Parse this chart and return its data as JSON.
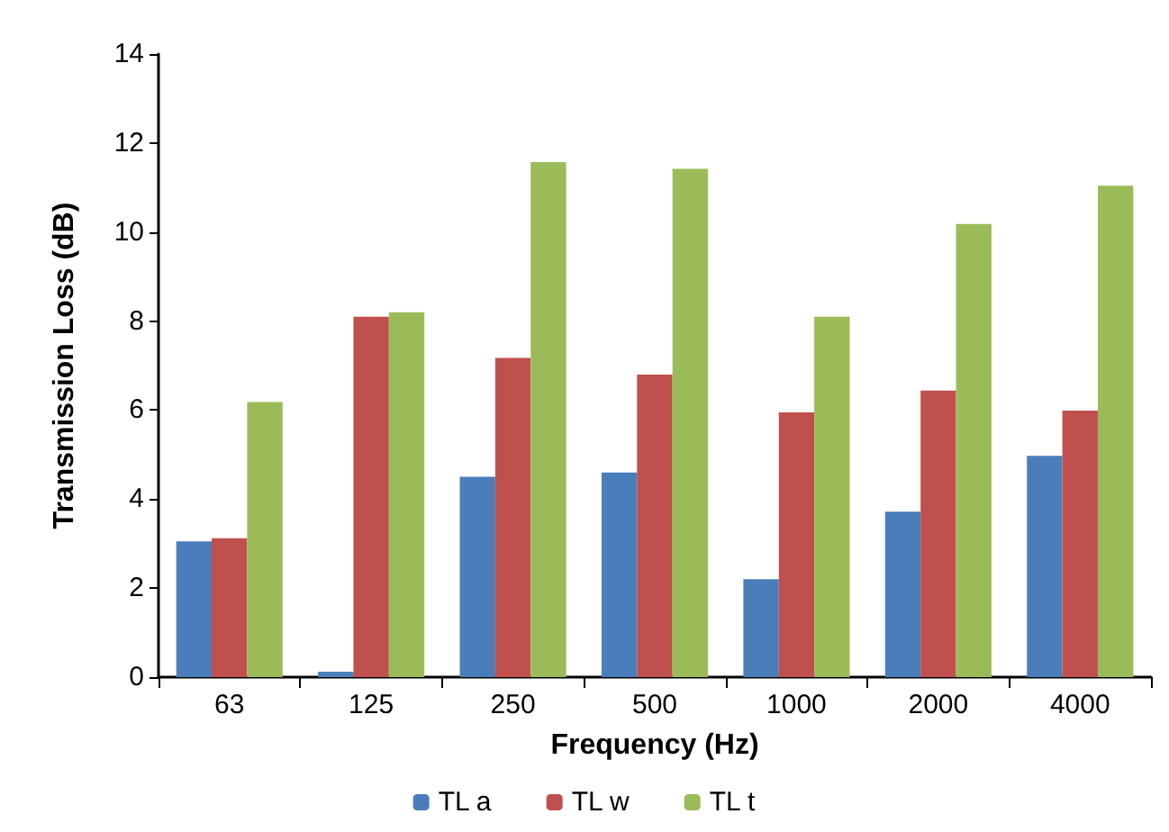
{
  "chart_data": {
    "type": "bar",
    "xlabel": "Frequency (Hz)",
    "ylabel": "Transmission Loss (dB)",
    "categories": [
      "63",
      "125",
      "250",
      "500",
      "1000",
      "2000",
      "4000"
    ],
    "series": [
      {
        "name": "TL a",
        "color": "#4a7ebb",
        "values": [
          3.05,
          0.12,
          4.5,
          4.6,
          2.2,
          3.72,
          4.97
        ]
      },
      {
        "name": "TL w",
        "color": "#c0504d",
        "values": [
          3.12,
          8.1,
          7.17,
          6.8,
          5.95,
          6.44,
          5.99
        ]
      },
      {
        "name": "TL t",
        "color": "#9bbb59",
        "values": [
          6.18,
          8.2,
          11.57,
          11.42,
          8.1,
          10.18,
          11.04
        ]
      }
    ],
    "ylim": [
      0,
      14
    ],
    "yticks": [
      0,
      2,
      4,
      6,
      8,
      10,
      12,
      14
    ],
    "grid": false,
    "legend": "bottom"
  }
}
